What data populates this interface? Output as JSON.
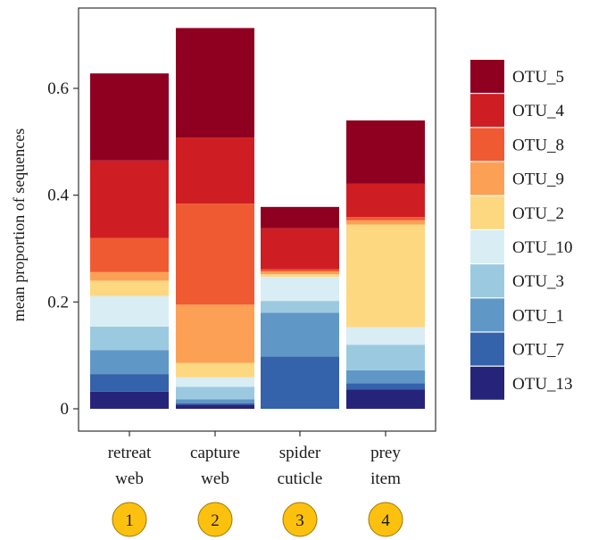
{
  "chart_data": {
    "type": "bar",
    "stacked": true,
    "title": "",
    "xlabel": "",
    "ylabel": "mean proportion of sequences",
    "ylim": [
      0,
      0.75
    ],
    "yticks": [
      0,
      0.2,
      0.4,
      0.6
    ],
    "ytick_labels": [
      "0",
      "0.2",
      "0.4",
      "0.6"
    ],
    "grid": false,
    "legend_position": "right",
    "categories": [
      [
        "retreat",
        "web"
      ],
      [
        "capture",
        "web"
      ],
      [
        "spider",
        "cuticle"
      ],
      [
        "prey",
        "item"
      ]
    ],
    "category_markers": [
      "1",
      "2",
      "3",
      "4"
    ],
    "series": [
      {
        "name": "OTU_13",
        "color": "#26247a",
        "values": [
          0.032,
          0.008,
          0.0,
          0.036
        ]
      },
      {
        "name": "OTU_7",
        "color": "#3462ab",
        "values": [
          0.033,
          0.002,
          0.098,
          0.012
        ]
      },
      {
        "name": "OTU_1",
        "color": "#5f98c6",
        "values": [
          0.045,
          0.008,
          0.082,
          0.024
        ]
      },
      {
        "name": "OTU_3",
        "color": "#9bcae0",
        "values": [
          0.044,
          0.023,
          0.022,
          0.048
        ]
      },
      {
        "name": "OTU_10",
        "color": "#d9edf4",
        "values": [
          0.057,
          0.018,
          0.045,
          0.033
        ]
      },
      {
        "name": "OTU_2",
        "color": "#fdd880",
        "values": [
          0.029,
          0.027,
          0.005,
          0.192
        ]
      },
      {
        "name": "OTU_9",
        "color": "#fca055",
        "values": [
          0.016,
          0.109,
          0.005,
          0.008
        ]
      },
      {
        "name": "OTU_8",
        "color": "#ef5a33",
        "values": [
          0.064,
          0.189,
          0.004,
          0.006
        ]
      },
      {
        "name": "OTU_4",
        "color": "#cf1e23",
        "values": [
          0.145,
          0.124,
          0.077,
          0.063
        ]
      },
      {
        "name": "OTU_5",
        "color": "#8f0020",
        "values": [
          0.163,
          0.205,
          0.04,
          0.118
        ]
      }
    ],
    "legend_order": [
      "OTU_5",
      "OTU_4",
      "OTU_8",
      "OTU_9",
      "OTU_2",
      "OTU_10",
      "OTU_3",
      "OTU_1",
      "OTU_7",
      "OTU_13"
    ],
    "marker_color": "#fcc10f"
  }
}
